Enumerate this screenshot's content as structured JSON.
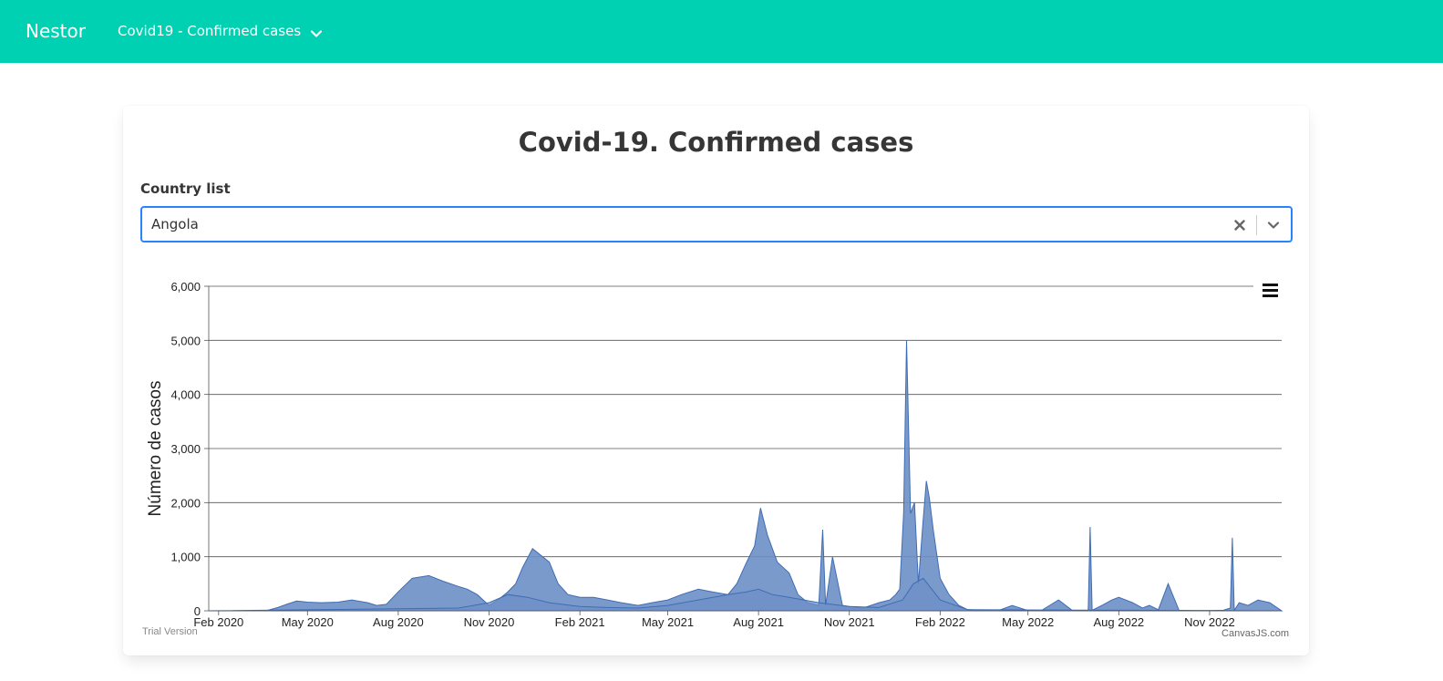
{
  "navbar": {
    "brand": "Nestor",
    "menu_label": "Covid19 - Confirmed cases",
    "menu_icon": "chevron-down-icon",
    "background": "#00d1b2"
  },
  "card": {
    "title": "Covid-19. Confirmed cases",
    "field_label": "Country list",
    "select": {
      "value": "Angola",
      "clear_icon": "close-icon",
      "dropdown_icon": "chevron-down-icon",
      "focus_color": "#2684ff"
    }
  },
  "chart_data": {
    "type": "area",
    "title": "",
    "ylabel": "Número de casos",
    "xlabel": "",
    "ylim": [
      0,
      6000
    ],
    "y_ticks": [
      0,
      1000,
      2000,
      3000,
      4000,
      5000,
      6000
    ],
    "y_tick_labels": [
      "0",
      "1,000",
      "2,000",
      "3,000",
      "4,000",
      "5,000",
      "6,000"
    ],
    "x_range": [
      "2020-01-22",
      "2023-01-13"
    ],
    "x_ticks": [
      "2020-02-01",
      "2020-05-01",
      "2020-08-01",
      "2020-11-01",
      "2021-02-01",
      "2021-05-01",
      "2021-08-01",
      "2021-11-01",
      "2022-02-01",
      "2022-05-01",
      "2022-08-01",
      "2022-11-01"
    ],
    "x_tick_labels": [
      "Feb 2020",
      "May 2020",
      "Aug 2020",
      "Nov 2020",
      "Feb 2021",
      "May 2021",
      "Aug 2021",
      "Nov 2021",
      "Feb 2022",
      "May 2022",
      "Aug 2022",
      "Nov 2022"
    ],
    "grid": true,
    "fill_color": "#6d8fc6",
    "line_color": "#3f6cb4",
    "series": [
      {
        "x": [
          "2020-01-22",
          "2020-03-20",
          "2020-04-01",
          "2020-04-10",
          "2020-04-20",
          "2020-05-01",
          "2020-05-15",
          "2020-06-01",
          "2020-06-15",
          "2020-07-01",
          "2020-07-10",
          "2020-07-20",
          "2020-08-01",
          "2020-08-15",
          "2020-09-01",
          "2020-09-15",
          "2020-10-01",
          "2020-10-10",
          "2020-10-20",
          "2020-11-01",
          "2020-11-10",
          "2020-11-20",
          "2020-11-28",
          "2020-12-05",
          "2020-12-15",
          "2021-01-01",
          "2021-01-10",
          "2021-01-20",
          "2021-02-01",
          "2021-02-15",
          "2021-03-01",
          "2021-03-15",
          "2021-04-01",
          "2021-04-15",
          "2021-05-01",
          "2021-05-15",
          "2021-06-01",
          "2021-06-15",
          "2021-07-01",
          "2021-07-10",
          "2021-07-20",
          "2021-07-28",
          "2021-08-03",
          "2021-08-10",
          "2021-08-20",
          "2021-09-01",
          "2021-09-10",
          "2021-09-20",
          "2021-10-01",
          "2021-10-05",
          "2021-10-08",
          "2021-10-15",
          "2021-10-25",
          "2021-11-01",
          "2021-11-15",
          "2021-12-01",
          "2021-12-12",
          "2021-12-18",
          "2021-12-22",
          "2021-12-26",
          "2021-12-29",
          "2022-01-02",
          "2022-01-06",
          "2022-01-10",
          "2022-01-14",
          "2022-01-18",
          "2022-01-21",
          "2022-01-25",
          "2022-02-01",
          "2022-02-10",
          "2022-02-20",
          "2022-03-01",
          "2022-03-15",
          "2022-04-01",
          "2022-04-15",
          "2022-05-01",
          "2022-05-15",
          "2022-06-01",
          "2022-06-15",
          "2022-07-01",
          "2022-07-03",
          "2022-07-05",
          "2022-07-15",
          "2022-07-25",
          "2022-08-01",
          "2022-08-15",
          "2022-08-25",
          "2022-09-01",
          "2022-09-10",
          "2022-09-20",
          "2022-10-01",
          "2022-10-15",
          "2022-11-01",
          "2022-11-15",
          "2022-11-22",
          "2022-11-24",
          "2022-11-26",
          "2022-12-01",
          "2022-12-10",
          "2022-12-20",
          "2023-01-01",
          "2023-01-13"
        ],
        "y": [
          0,
          0,
          60,
          120,
          180,
          160,
          150,
          160,
          200,
          150,
          100,
          120,
          350,
          600,
          650,
          550,
          450,
          400,
          300,
          100,
          200,
          350,
          500,
          800,
          1150,
          900,
          500,
          300,
          250,
          250,
          200,
          150,
          100,
          150,
          200,
          300,
          400,
          350,
          300,
          500,
          900,
          1200,
          1900,
          1400,
          900,
          700,
          300,
          150,
          100,
          1500,
          100,
          1000,
          100,
          80,
          50,
          150,
          200,
          300,
          400,
          1800,
          5000,
          1800,
          2000,
          500,
          1500,
          2400,
          2100,
          1500,
          600,
          300,
          100,
          20,
          10,
          5,
          100,
          5,
          10,
          200,
          5,
          10,
          1550,
          10,
          100,
          200,
          250,
          150,
          50,
          100,
          20,
          500,
          10,
          5,
          5,
          10,
          50,
          1350,
          10,
          150,
          100,
          200,
          150,
          0
        ],
        "values_note_removed": null
      },
      {
        "x": [
          "2020-01-22",
          "2020-10-01",
          "2020-11-01",
          "2020-11-20",
          "2020-12-10",
          "2021-01-01",
          "2021-02-01",
          "2021-03-01",
          "2021-04-01",
          "2021-05-01",
          "2021-06-01",
          "2021-07-01",
          "2021-07-20",
          "2021-08-01",
          "2021-08-15",
          "2021-09-01",
          "2021-10-01",
          "2021-11-01",
          "2021-12-01",
          "2021-12-25",
          "2022-01-05",
          "2022-01-15",
          "2022-02-01",
          "2022-03-01",
          "2023-01-13"
        ],
        "y": [
          0,
          50,
          150,
          300,
          250,
          150,
          80,
          60,
          50,
          100,
          200,
          300,
          350,
          400,
          300,
          250,
          150,
          80,
          60,
          200,
          500,
          600,
          200,
          20,
          0
        ]
      }
    ]
  },
  "credits": {
    "trial": "Trial Version",
    "brand": "CanvasJS.com"
  },
  "chart_menu_icon": "hamburger-menu-icon"
}
